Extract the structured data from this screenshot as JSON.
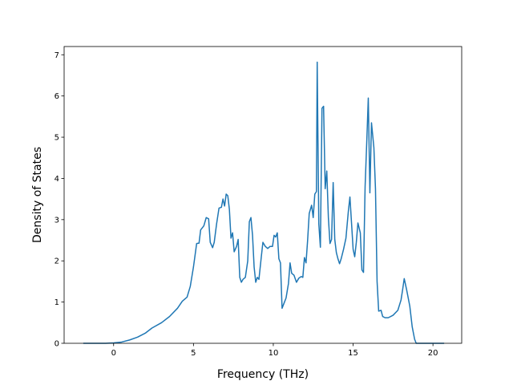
{
  "chart_data": {
    "type": "line",
    "title": "",
    "xlabel": "Frequency (THz)",
    "ylabel": "Density of States",
    "xlim": [
      -3.1,
      21.8
    ],
    "ylim": [
      0,
      7.2
    ],
    "xticks": [
      0,
      5,
      10,
      15,
      20
    ],
    "yticks": [
      0,
      1,
      2,
      3,
      4,
      5,
      6,
      7
    ],
    "grid": false,
    "legend": "none",
    "line_color": "#1f77b4",
    "series": [
      {
        "points": [
          [
            -1.9,
            0
          ],
          [
            -0.5,
            0
          ],
          [
            0,
            0.01
          ],
          [
            0.5,
            0.03
          ],
          [
            1.0,
            0.08
          ],
          [
            1.5,
            0.15
          ],
          [
            2.0,
            0.25
          ],
          [
            2.4,
            0.37
          ],
          [
            3.0,
            0.5
          ],
          [
            3.5,
            0.65
          ],
          [
            4.0,
            0.85
          ],
          [
            4.3,
            1.02
          ],
          [
            4.6,
            1.12
          ],
          [
            4.8,
            1.38
          ],
          [
            5.0,
            1.85
          ],
          [
            5.2,
            2.42
          ],
          [
            5.35,
            2.43
          ],
          [
            5.45,
            2.75
          ],
          [
            5.65,
            2.85
          ],
          [
            5.8,
            3.05
          ],
          [
            5.95,
            3.02
          ],
          [
            6.05,
            2.45
          ],
          [
            6.2,
            2.32
          ],
          [
            6.3,
            2.45
          ],
          [
            6.45,
            2.9
          ],
          [
            6.6,
            3.28
          ],
          [
            6.75,
            3.3
          ],
          [
            6.85,
            3.5
          ],
          [
            6.95,
            3.33
          ],
          [
            7.05,
            3.62
          ],
          [
            7.15,
            3.58
          ],
          [
            7.25,
            3.25
          ],
          [
            7.35,
            2.55
          ],
          [
            7.45,
            2.68
          ],
          [
            7.55,
            2.22
          ],
          [
            7.7,
            2.35
          ],
          [
            7.8,
            2.52
          ],
          [
            7.9,
            1.6
          ],
          [
            8.0,
            1.48
          ],
          [
            8.1,
            1.55
          ],
          [
            8.25,
            1.6
          ],
          [
            8.4,
            2.0
          ],
          [
            8.5,
            2.95
          ],
          [
            8.6,
            3.05
          ],
          [
            8.7,
            2.62
          ],
          [
            8.8,
            1.85
          ],
          [
            8.9,
            1.48
          ],
          [
            9.0,
            1.6
          ],
          [
            9.1,
            1.55
          ],
          [
            9.25,
            2.1
          ],
          [
            9.35,
            2.45
          ],
          [
            9.5,
            2.35
          ],
          [
            9.65,
            2.3
          ],
          [
            9.8,
            2.35
          ],
          [
            9.95,
            2.35
          ],
          [
            10.05,
            2.62
          ],
          [
            10.15,
            2.58
          ],
          [
            10.25,
            2.68
          ],
          [
            10.35,
            2.05
          ],
          [
            10.45,
            1.95
          ],
          [
            10.55,
            0.85
          ],
          [
            10.65,
            0.95
          ],
          [
            10.8,
            1.1
          ],
          [
            10.95,
            1.45
          ],
          [
            11.05,
            1.95
          ],
          [
            11.15,
            1.7
          ],
          [
            11.3,
            1.65
          ],
          [
            11.45,
            1.48
          ],
          [
            11.6,
            1.58
          ],
          [
            11.75,
            1.62
          ],
          [
            11.85,
            1.6
          ],
          [
            11.95,
            2.08
          ],
          [
            12.05,
            1.95
          ],
          [
            12.15,
            2.5
          ],
          [
            12.25,
            3.15
          ],
          [
            12.4,
            3.35
          ],
          [
            12.5,
            3.05
          ],
          [
            12.6,
            3.62
          ],
          [
            12.7,
            3.68
          ],
          [
            12.75,
            6.82
          ],
          [
            12.85,
            2.9
          ],
          [
            12.95,
            2.33
          ],
          [
            13.05,
            5.7
          ],
          [
            13.15,
            5.75
          ],
          [
            13.25,
            3.75
          ],
          [
            13.35,
            4.18
          ],
          [
            13.45,
            3.05
          ],
          [
            13.55,
            2.42
          ],
          [
            13.65,
            2.52
          ],
          [
            13.75,
            3.9
          ],
          [
            13.85,
            2.52
          ],
          [
            13.95,
            2.2
          ],
          [
            14.05,
            2.05
          ],
          [
            14.15,
            1.93
          ],
          [
            14.25,
            2.05
          ],
          [
            14.4,
            2.28
          ],
          [
            14.55,
            2.55
          ],
          [
            14.7,
            3.2
          ],
          [
            14.8,
            3.55
          ],
          [
            14.9,
            2.92
          ],
          [
            15.0,
            2.28
          ],
          [
            15.1,
            2.1
          ],
          [
            15.2,
            2.45
          ],
          [
            15.3,
            2.92
          ],
          [
            15.45,
            2.68
          ],
          [
            15.55,
            1.78
          ],
          [
            15.65,
            1.72
          ],
          [
            15.75,
            3.8
          ],
          [
            15.85,
            4.85
          ],
          [
            15.95,
            5.95
          ],
          [
            16.05,
            3.65
          ],
          [
            16.15,
            5.35
          ],
          [
            16.3,
            4.75
          ],
          [
            16.4,
            3.75
          ],
          [
            16.5,
            1.5
          ],
          [
            16.6,
            0.78
          ],
          [
            16.75,
            0.8
          ],
          [
            16.85,
            0.65
          ],
          [
            17.0,
            0.62
          ],
          [
            17.2,
            0.62
          ],
          [
            17.5,
            0.68
          ],
          [
            17.8,
            0.8
          ],
          [
            18.0,
            1.05
          ],
          [
            18.1,
            1.3
          ],
          [
            18.2,
            1.57
          ],
          [
            18.35,
            1.3
          ],
          [
            18.55,
            0.9
          ],
          [
            18.7,
            0.4
          ],
          [
            18.85,
            0.1
          ],
          [
            18.95,
            0
          ],
          [
            20.0,
            0
          ],
          [
            20.7,
            0
          ]
        ]
      }
    ]
  }
}
